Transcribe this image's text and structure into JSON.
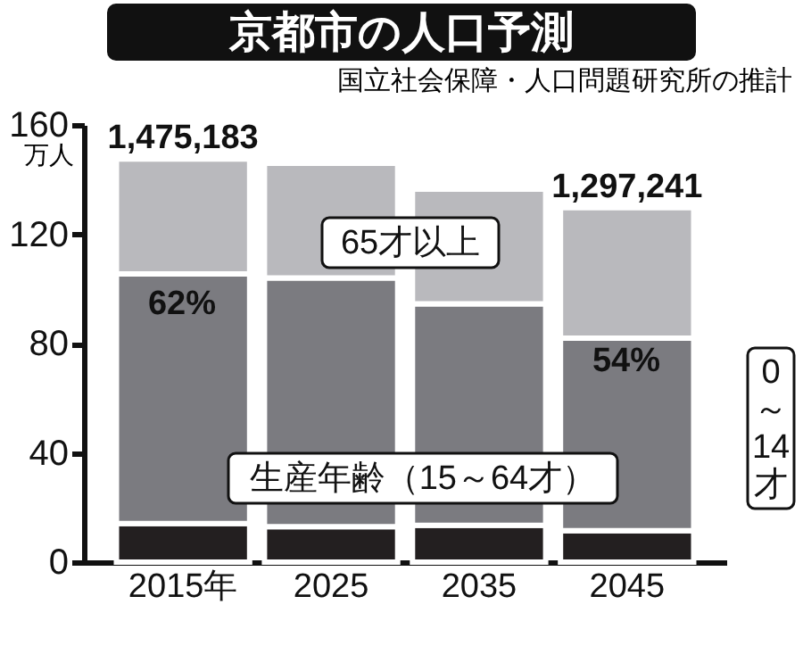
{
  "chart_data": {
    "type": "bar",
    "title": "京都市の人口予測",
    "subtitle": "国立社会保障・人口問題研究所の推計",
    "ylabel": "万人",
    "categories": [
      "2015年",
      "2025",
      "2035",
      "2045"
    ],
    "stacked": true,
    "series": [
      {
        "name": "0～14才",
        "color": "#231f20",
        "values": [
          14.1,
          13,
          13.5,
          11.5
        ]
      },
      {
        "name": "生産年齢（15～64才）",
        "color": "#7b7b80",
        "values": [
          91.4,
          91,
          81,
          70.5
        ]
      },
      {
        "name": "65才以上",
        "color": "#b9b9bd",
        "values": [
          42,
          42,
          42,
          47.7
        ]
      }
    ],
    "annotations": [
      {
        "text": "1,475,183",
        "x": "2015年",
        "y": 147.5
      },
      {
        "text": "1,297,241",
        "x": "2045",
        "y": 129.7
      },
      "62%",
      "54%"
    ],
    "ylim": [
      0,
      160
    ],
    "yticks": [
      0,
      40,
      80,
      120,
      160
    ],
    "grid": false,
    "legend": false
  }
}
